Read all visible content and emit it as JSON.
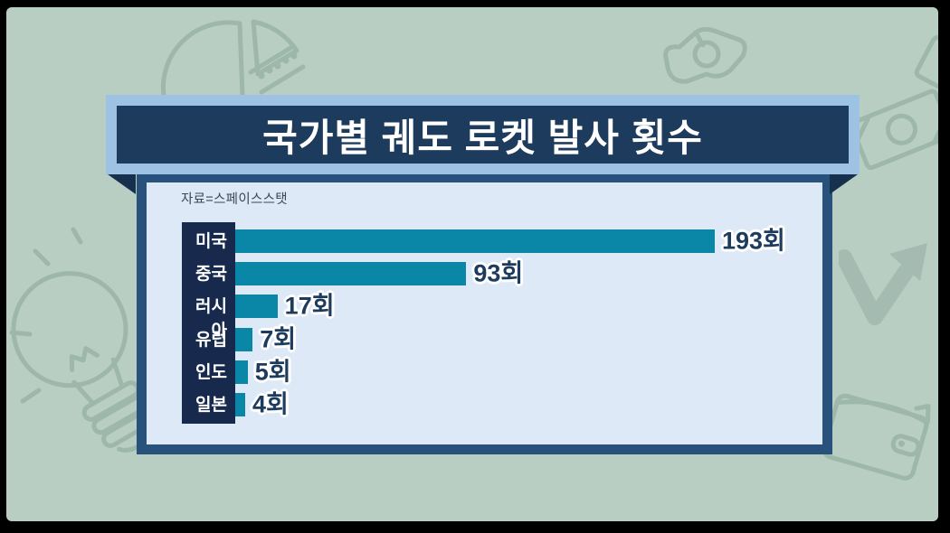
{
  "header": {
    "title": "국가별 궤도 로켓 발사 횟수"
  },
  "chart_data": {
    "type": "bar",
    "orientation": "horizontal",
    "title": "국가별 궤도 로켓 발사 횟수",
    "source": "자료=스페이스스탯",
    "categories": [
      "미국",
      "중국",
      "러시아",
      "유럽",
      "인도",
      "일본"
    ],
    "values": [
      193,
      93,
      17,
      7,
      5,
      4
    ],
    "unit": "회",
    "value_labels": [
      "193회",
      "93회",
      "17회",
      "7회",
      "5회",
      "4회"
    ],
    "xlim": [
      0,
      200
    ],
    "grid": false,
    "legend": false
  },
  "decorations": [
    "pie-chart-icon",
    "money-bill-crumpled-icon",
    "money-bill-flat-icon",
    "money-bill-corner-icon",
    "trending-arrow-icon",
    "wallet-icon",
    "light-bulb-icon"
  ],
  "colors": {
    "background": "#b8cec3",
    "doodle": "#9eb7ab",
    "doodle-fill": "#a3bbb0",
    "ribbon-frame": "#9dc2e4",
    "ribbon-box": "#1d3b5c",
    "wedge": "#16304e",
    "panel-border": "#28527c",
    "panel-bg": "#dde9f6",
    "bar": "#0a87a7",
    "label-column": "#17294d",
    "value-text": "#1d3b5c",
    "source-text": "#3d4755",
    "frame": "#000000"
  }
}
